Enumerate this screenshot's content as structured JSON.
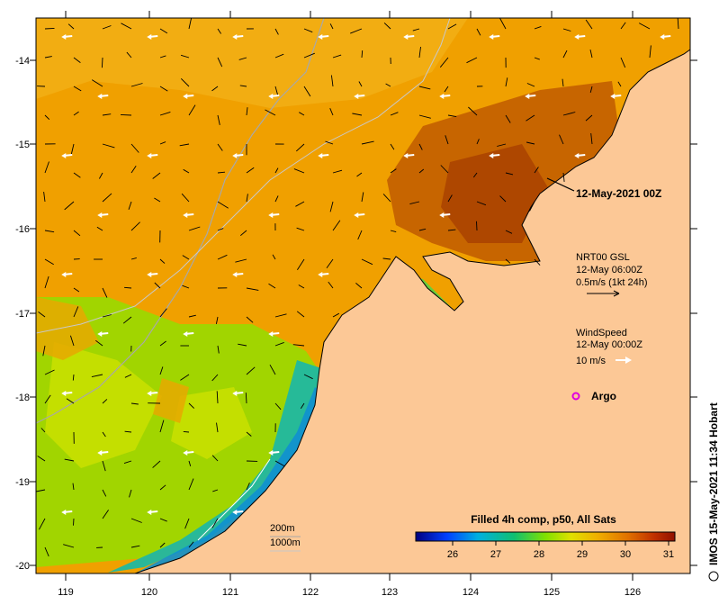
{
  "map": {
    "date_label": "12-May-2021 00Z",
    "current_legend": {
      "source": "NRT00 GSL",
      "time": "12-May 06:00Z",
      "scale": "0.5m/s (1kt 24h)"
    },
    "wind_legend": {
      "title": "WindSpeed",
      "time": "12-May 00:00Z",
      "scale": "10 m/s"
    },
    "argo_label": "Argo",
    "isobath_labels": [
      "200m",
      "1000m"
    ],
    "colorbar": {
      "title": "Filled 4h comp, p50, All Sats",
      "ticks": [
        "26",
        "27",
        "28",
        "29",
        "30",
        "31"
      ],
      "range": [
        25.3,
        31.3
      ]
    },
    "credit": "IMOS 15-May-2021 11:34 Hobart",
    "lon_ticks": [
      "119",
      "120",
      "121",
      "122",
      "123",
      "124",
      "125",
      "126"
    ],
    "lat_ticks": [
      "-14",
      "-15",
      "-16",
      "-17",
      "-18",
      "-19",
      "-20"
    ],
    "extent": {
      "lon": [
        118.62,
        126.68
      ],
      "lat": [
        -20.18,
        -13.5
      ]
    },
    "colors": {
      "land": "#fcc896",
      "sst_warm": "#f0a000",
      "sst_hot": "#b04a00",
      "sst_mid": "#b0e000",
      "sst_cool": "#10b0c0",
      "argo": "#e000e0"
    }
  }
}
